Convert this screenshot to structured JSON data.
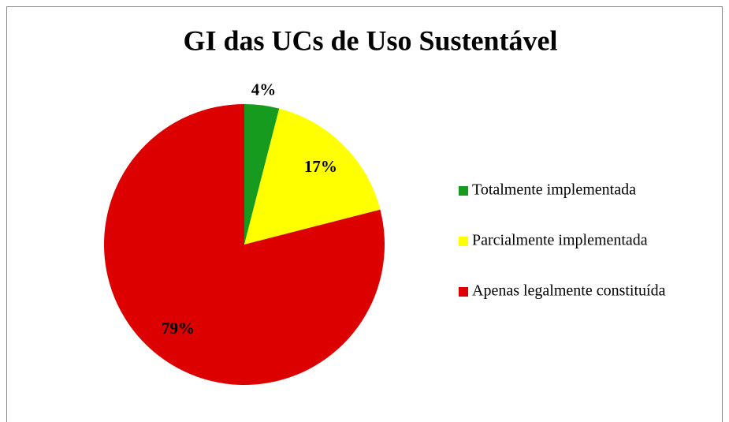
{
  "chart_data": {
    "type": "pie",
    "title": "GI das UCs de Uso Sustentável",
    "categories": [
      "Totalmente implementada",
      "Parcialmente implementada",
      "Apenas legalmente constituída"
    ],
    "values": [
      4,
      17,
      79
    ],
    "value_labels": [
      "4%",
      "17%",
      "79%"
    ],
    "colors": [
      "#179b1f",
      "#ffff00",
      "#dd0000"
    ],
    "legend": "right"
  }
}
